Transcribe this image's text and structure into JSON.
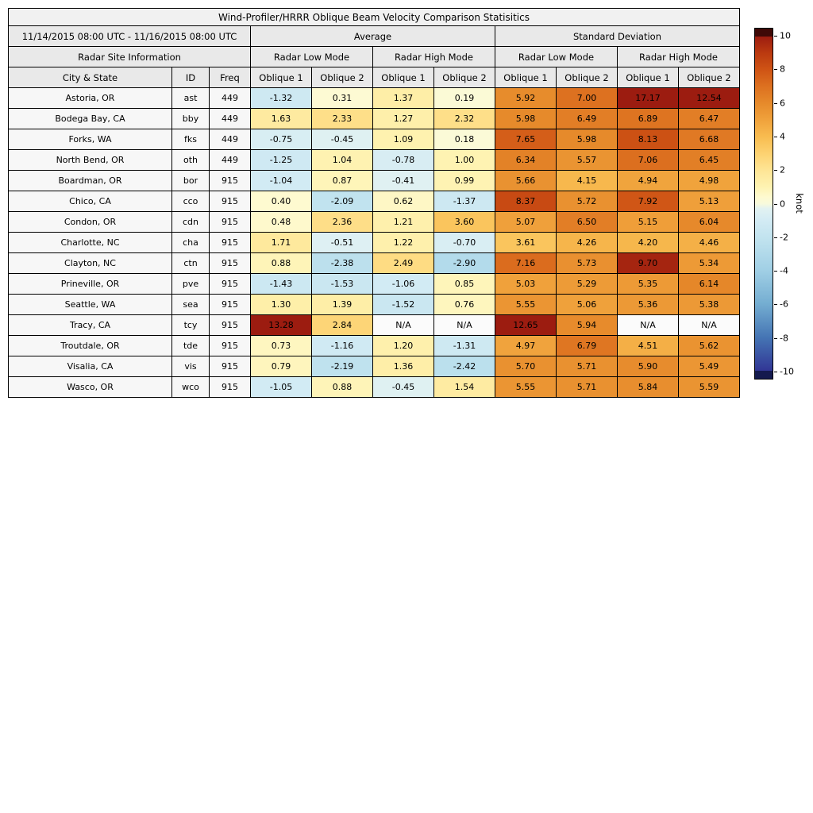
{
  "title": "Wind-Profiler/HRRR Oblique Beam Velocity Comparison Statisitics",
  "table": {
    "date_range": "11/14/2015 08:00 UTC - 11/16/2015 08:00 UTC",
    "sections": {
      "average": "Average",
      "stdev": "Standard Deviation",
      "site_info": "Radar Site Information"
    },
    "mode_headers": [
      "Radar Low Mode",
      "Radar High Mode",
      "Radar Low Mode",
      "Radar High Mode"
    ],
    "info_columns": [
      "City & State",
      "ID",
      "Freq"
    ],
    "oblique_headers": [
      "Oblique 1",
      "Oblique 2",
      "Oblique 1",
      "Oblique 2",
      "Oblique 1",
      "Oblique 2",
      "Oblique 1",
      "Oblique 2"
    ],
    "na_text": "N/A"
  },
  "colorbar": {
    "label": "knot",
    "min": -10,
    "max": 10,
    "ticks": [
      10,
      8,
      6,
      4,
      2,
      0,
      -2,
      -4,
      -6,
      -8,
      -10
    ],
    "over_cap_color": "#3f0907",
    "under_cap_color": "#141a4e"
  },
  "colormap_stops": [
    [
      -10,
      "#313695"
    ],
    [
      -8,
      "#4575b4"
    ],
    [
      -6,
      "#74add1"
    ],
    [
      -4,
      "#a0cfe5"
    ],
    [
      -2.2,
      "#bfe2ee"
    ],
    [
      -1.0,
      "#d3ebf4"
    ],
    [
      -0.3,
      "#e2f2f2"
    ],
    [
      0.0,
      "#f8fadc"
    ],
    [
      0.4,
      "#fefad0"
    ],
    [
      1.0,
      "#fef3b2"
    ],
    [
      2.0,
      "#fee595"
    ],
    [
      3.0,
      "#fdd271"
    ],
    [
      4.0,
      "#f8bc50"
    ],
    [
      5.0,
      "#f0a23c"
    ],
    [
      6.0,
      "#e68a2b"
    ],
    [
      7.0,
      "#dd7120"
    ],
    [
      8.0,
      "#cf5415"
    ],
    [
      9.0,
      "#bb3a10"
    ],
    [
      10.0,
      "#9c1c10"
    ]
  ],
  "na_cell_color": "#fbfbfb",
  "chart_data": {
    "type": "heatmap",
    "title": "Wind-Profiler/HRRR Oblique Beam Velocity Comparison Statisitics",
    "unit": "knot",
    "value_range": [
      -10,
      10
    ],
    "value_columns": [
      "Average Radar Low Mode Oblique 1",
      "Average Radar Low Mode Oblique 2",
      "Average Radar High Mode Oblique 1",
      "Average Radar High Mode Oblique 2",
      "Standard Deviation Radar Low Mode Oblique 1",
      "Standard Deviation Radar Low Mode Oblique 2",
      "Standard Deviation Radar High Mode Oblique 1",
      "Standard Deviation Radar High Mode Oblique 2"
    ],
    "rows": [
      {
        "city": "Astoria, OR",
        "id": "ast",
        "freq": "449",
        "values": [
          -1.32,
          0.31,
          1.37,
          0.19,
          5.92,
          7.0,
          17.17,
          12.54
        ]
      },
      {
        "city": "Bodega Bay, CA",
        "id": "bby",
        "freq": "449",
        "values": [
          1.63,
          2.33,
          1.27,
          2.32,
          5.98,
          6.49,
          6.89,
          6.47
        ]
      },
      {
        "city": "Forks, WA",
        "id": "fks",
        "freq": "449",
        "values": [
          -0.75,
          -0.45,
          1.09,
          0.18,
          7.65,
          5.98,
          8.13,
          6.68
        ]
      },
      {
        "city": "North Bend, OR",
        "id": "oth",
        "freq": "449",
        "values": [
          -1.25,
          1.04,
          -0.78,
          1.0,
          6.34,
          5.57,
          7.06,
          6.45
        ]
      },
      {
        "city": "Boardman, OR",
        "id": "bor",
        "freq": "915",
        "values": [
          -1.04,
          0.87,
          -0.41,
          0.99,
          5.66,
          4.15,
          4.94,
          4.98
        ]
      },
      {
        "city": "Chico, CA",
        "id": "cco",
        "freq": "915",
        "values": [
          0.4,
          -2.09,
          0.62,
          -1.37,
          8.37,
          5.72,
          7.92,
          5.13
        ]
      },
      {
        "city": "Condon, OR",
        "id": "cdn",
        "freq": "915",
        "values": [
          0.48,
          2.36,
          1.21,
          3.6,
          5.07,
          6.5,
          5.15,
          6.04
        ]
      },
      {
        "city": "Charlotte, NC",
        "id": "cha",
        "freq": "915",
        "values": [
          1.71,
          -0.51,
          1.22,
          -0.7,
          3.61,
          4.26,
          4.2,
          4.46
        ]
      },
      {
        "city": "Clayton, NC",
        "id": "ctn",
        "freq": "915",
        "values": [
          0.88,
          -2.38,
          2.49,
          -2.9,
          7.16,
          5.73,
          9.7,
          5.34
        ]
      },
      {
        "city": "Prineville, OR",
        "id": "pve",
        "freq": "915",
        "values": [
          -1.43,
          -1.53,
          -1.06,
          0.85,
          5.03,
          5.29,
          5.35,
          6.14
        ]
      },
      {
        "city": "Seattle, WA",
        "id": "sea",
        "freq": "915",
        "values": [
          1.3,
          1.39,
          -1.52,
          0.76,
          5.55,
          5.06,
          5.36,
          5.38
        ]
      },
      {
        "city": "Tracy, CA",
        "id": "tcy",
        "freq": "915",
        "values": [
          13.28,
          2.84,
          null,
          null,
          12.65,
          5.94,
          null,
          null
        ]
      },
      {
        "city": "Troutdale, OR",
        "id": "tde",
        "freq": "915",
        "values": [
          0.73,
          -1.16,
          1.2,
          -1.31,
          4.97,
          6.79,
          4.51,
          5.62
        ]
      },
      {
        "city": "Visalia, CA",
        "id": "vis",
        "freq": "915",
        "values": [
          0.79,
          -2.19,
          1.36,
          -2.42,
          5.7,
          5.71,
          5.9,
          5.49
        ]
      },
      {
        "city": "Wasco, OR",
        "id": "wco",
        "freq": "915",
        "values": [
          -1.05,
          0.88,
          -0.45,
          1.54,
          5.55,
          5.71,
          5.84,
          5.59
        ]
      }
    ]
  }
}
